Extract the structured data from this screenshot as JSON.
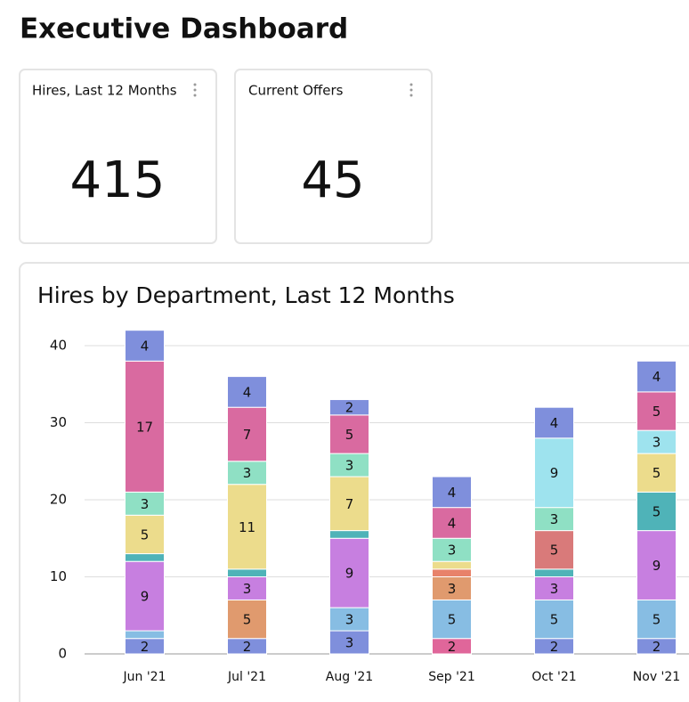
{
  "header": {
    "title": "Executive Dashboard"
  },
  "cards": [
    {
      "title": "Hires, Last 12 Months",
      "value": 415
    },
    {
      "title": "Current Offers",
      "value": 45
    }
  ],
  "chart_data": {
    "type": "stacked_bar",
    "title": "Hires by Department, Last 12 Months",
    "categories": [
      "Jun '21",
      "Jul '21",
      "Aug '21",
      "Sep '21",
      "Oct '21",
      "Nov '21"
    ],
    "ylim": [
      0,
      40
    ],
    "yticks": [
      0,
      10,
      20,
      30,
      40
    ],
    "grid": true,
    "series": [
      {
        "color": "#7f8fdc",
        "values": [
          2,
          2,
          3,
          null,
          2,
          2
        ]
      },
      {
        "color": "#e0669a",
        "values": [
          null,
          null,
          null,
          2,
          null,
          null
        ]
      },
      {
        "color": "#87bde3",
        "values": [
          1,
          null,
          3,
          5,
          5,
          5
        ]
      },
      {
        "color": "#e09a6e",
        "values": [
          null,
          5,
          null,
          3,
          null,
          null
        ]
      },
      {
        "color": "#e8826a",
        "values": [
          null,
          null,
          null,
          1,
          null,
          null
        ]
      },
      {
        "color": "#c77fe0",
        "values": [
          9,
          3,
          9,
          null,
          3,
          9
        ]
      },
      {
        "color": "#4fb3b8",
        "values": [
          1,
          1,
          1,
          null,
          1,
          5
        ]
      },
      {
        "color": "#d97a7a",
        "values": [
          null,
          null,
          null,
          null,
          5,
          null
        ]
      },
      {
        "color": "#ecdc8c",
        "values": [
          5,
          11,
          7,
          1,
          null,
          5
        ]
      },
      {
        "color": "#8fe0c4",
        "values": [
          3,
          3,
          3,
          3,
          3,
          null
        ]
      },
      {
        "color": "#9ee3ee",
        "values": [
          null,
          null,
          null,
          null,
          9,
          3
        ]
      },
      {
        "color": "#d96aa0",
        "values": [
          17,
          7,
          5,
          4,
          null,
          5
        ]
      },
      {
        "color": "#7f8fdc",
        "values": [
          4,
          4,
          2,
          4,
          4,
          4
        ]
      }
    ]
  }
}
